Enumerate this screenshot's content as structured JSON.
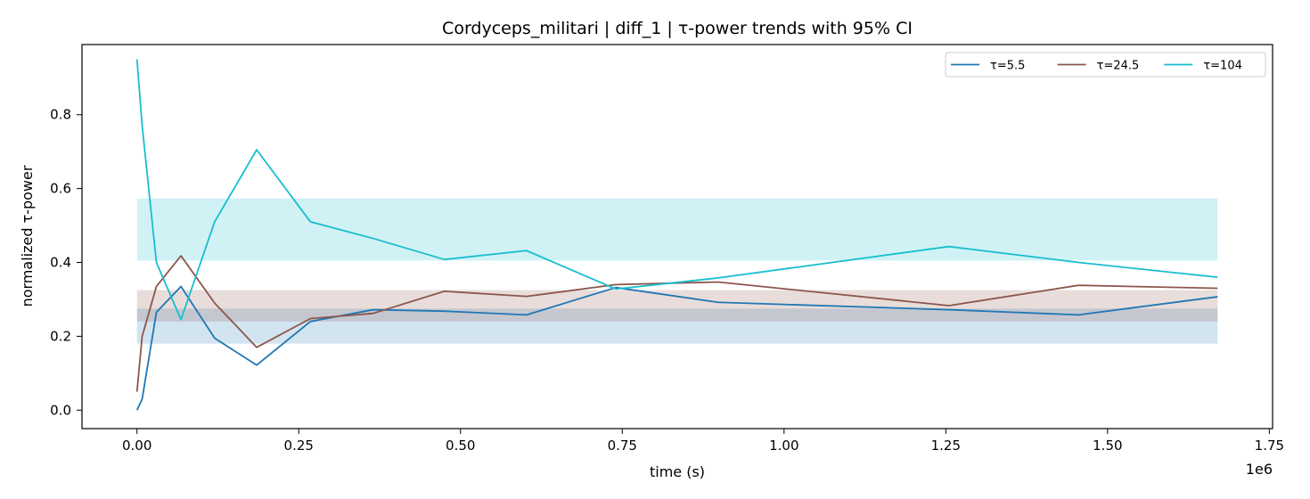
{
  "chart_data": {
    "type": "line",
    "title": "Cordyceps_militari | diff_1 | τ-power trends with 95% CI",
    "xlabel": "time (s)",
    "ylabel": "normalized τ-power",
    "x_offset_label": "1e6",
    "xlim": [
      -0.085,
      1.755
    ],
    "ylim": [
      -0.05,
      0.99
    ],
    "x_scale": 1000000,
    "x_ticks": [
      0.0,
      0.25,
      0.5,
      0.75,
      1.0,
      1.25,
      1.5,
      1.75
    ],
    "x_tick_labels": [
      "0.00",
      "0.25",
      "0.50",
      "0.75",
      "1.00",
      "1.25",
      "1.50",
      "1.75"
    ],
    "y_ticks": [
      0.0,
      0.2,
      0.4,
      0.6,
      0.8
    ],
    "y_tick_labels": [
      "0.0",
      "0.2",
      "0.4",
      "0.6",
      "0.8"
    ],
    "grid": false,
    "legend_position": "top-right",
    "x": [
      0,
      8000,
      30000,
      68000,
      120000,
      185000,
      268000,
      365000,
      475000,
      602000,
      740000,
      898000,
      1255000,
      1455000,
      1670000
    ],
    "series": [
      {
        "name": "τ=5.5",
        "color": "#1f77b4",
        "values": [
          0.0,
          0.03,
          0.265,
          0.335,
          0.195,
          0.122,
          0.24,
          0.272,
          0.268,
          0.258,
          0.332,
          0.292,
          0.272,
          0.258,
          0.307
        ],
        "ci": [
          0.18,
          0.275
        ]
      },
      {
        "name": "τ=24.5",
        "color": "#8c564b",
        "values": [
          0.05,
          0.2,
          0.335,
          0.418,
          0.29,
          0.17,
          0.248,
          0.262,
          0.322,
          0.308,
          0.34,
          0.347,
          0.283,
          0.338,
          0.33
        ],
        "ci": [
          0.24,
          0.325
        ]
      },
      {
        "name": "τ=104",
        "color": "#17becf",
        "values": [
          0.95,
          0.77,
          0.4,
          0.245,
          0.51,
          0.705,
          0.51,
          0.465,
          0.408,
          0.432,
          0.328,
          0.358,
          0.443,
          0.4,
          0.36
        ],
        "ci": [
          0.405,
          0.573
        ]
      }
    ]
  }
}
